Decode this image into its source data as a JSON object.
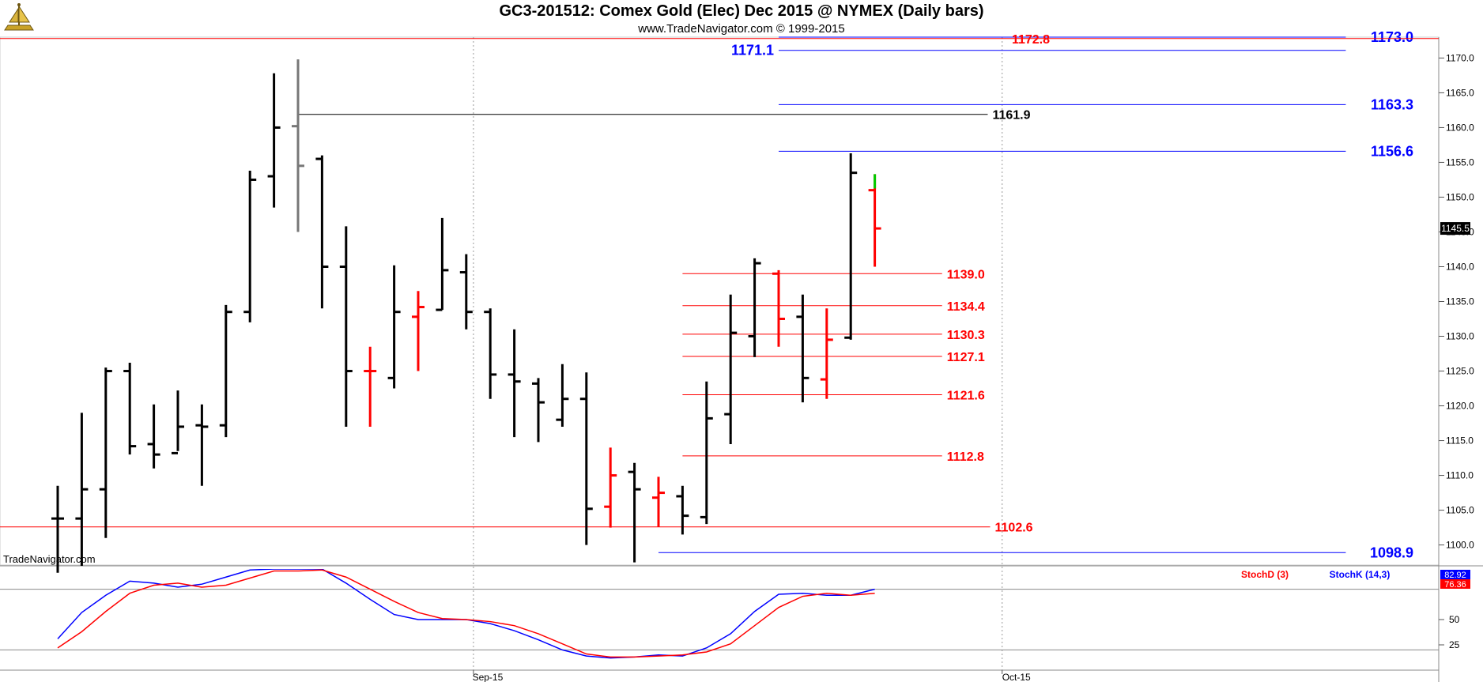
{
  "header": {
    "title": "GC3-201512:  Comex Gold (Elec) Dec 2015 @ NYMEX  (Daily bars)",
    "subtitle": "www.TradeNavigator.com © 1999-2015"
  },
  "watermark": "TradeNavigator.com",
  "colors": {
    "up_bar": "#000000",
    "down_bar": "#ff0000",
    "gray_bar": "#777777",
    "red_level": "#ff0000",
    "blue_level": "#0000ff",
    "black_level": "#000000",
    "stoch_k": "#0000ff",
    "stoch_d": "#ff0000",
    "tick_green": "#00cc00"
  },
  "chart_data": [
    {
      "type": "ohlc",
      "title": "GC3-201512:  Comex Gold (Elec) Dec 2015 @ NYMEX  (Daily bars)",
      "ylim": [
        1097,
        1173
      ],
      "y_ticks": [
        "1100.0",
        "1105.0",
        "1110.0",
        "1115.0",
        "1120.0",
        "1125.0",
        "1130.0",
        "1135.0",
        "1140.0",
        "1145.0",
        "1150.0",
        "1155.0",
        "1160.0",
        "1165.0",
        "1170.0"
      ],
      "y_tick_values": [
        1100,
        1105,
        1110,
        1115,
        1120,
        1125,
        1130,
        1135,
        1140,
        1145,
        1150,
        1155,
        1160,
        1165,
        1170
      ],
      "x_labels": [
        "Sep-15",
        "Oct-15"
      ],
      "x_label_bar_index": [
        17.3,
        39.3
      ],
      "last_price": "1145.5",
      "last_price_value": 1145.5,
      "bars": [
        {
          "h": 1108.5,
          "l": 1096.0,
          "o": 1103.8,
          "c": 1103.8,
          "color": "black"
        },
        {
          "h": 1119.0,
          "l": 1097.0,
          "o": 1103.8,
          "c": 1108.0,
          "color": "black"
        },
        {
          "h": 1125.5,
          "l": 1101.0,
          "o": 1108.0,
          "c": 1125.0,
          "color": "black"
        },
        {
          "h": 1126.2,
          "l": 1113.0,
          "o": 1125.0,
          "c": 1114.2,
          "color": "black"
        },
        {
          "h": 1120.2,
          "l": 1111.0,
          "o": 1114.5,
          "c": 1113.0,
          "color": "black"
        },
        {
          "h": 1122.2,
          "l": 1113.5,
          "o": 1113.2,
          "c": 1117.0,
          "color": "black"
        },
        {
          "h": 1120.2,
          "l": 1108.5,
          "o": 1117.2,
          "c": 1117.0,
          "color": "black"
        },
        {
          "h": 1134.5,
          "l": 1115.5,
          "o": 1117.2,
          "c": 1133.5,
          "color": "black"
        },
        {
          "h": 1153.8,
          "l": 1132.0,
          "o": 1133.5,
          "c": 1152.5,
          "color": "black"
        },
        {
          "h": 1167.8,
          "l": 1148.5,
          "o": 1153.0,
          "c": 1160.0,
          "color": "black"
        },
        {
          "h": 1169.8,
          "l": 1145.0,
          "o": 1160.2,
          "c": 1154.5,
          "color": "gray"
        },
        {
          "h": 1156.0,
          "l": 1134.0,
          "o": 1155.5,
          "c": 1140.0,
          "color": "black"
        },
        {
          "h": 1145.8,
          "l": 1117.0,
          "o": 1140.0,
          "c": 1125.0,
          "color": "black"
        },
        {
          "h": 1128.5,
          "l": 1117.0,
          "o": 1125.0,
          "c": 1125.0,
          "color": "red"
        },
        {
          "h": 1140.2,
          "l": 1122.5,
          "o": 1124.0,
          "c": 1133.5,
          "color": "black"
        },
        {
          "h": 1136.5,
          "l": 1125.0,
          "o": 1132.8,
          "c": 1134.2,
          "color": "red"
        },
        {
          "h": 1147.0,
          "l": 1133.8,
          "o": 1133.8,
          "c": 1139.5,
          "color": "black"
        },
        {
          "h": 1141.8,
          "l": 1131.0,
          "o": 1139.2,
          "c": 1133.5,
          "color": "black"
        },
        {
          "h": 1134.0,
          "l": 1121.0,
          "o": 1133.5,
          "c": 1124.5,
          "color": "black"
        },
        {
          "h": 1131.0,
          "l": 1115.5,
          "o": 1124.5,
          "c": 1123.5,
          "color": "black"
        },
        {
          "h": 1124.0,
          "l": 1114.8,
          "o": 1123.2,
          "c": 1120.5,
          "color": "black"
        },
        {
          "h": 1126.0,
          "l": 1117.0,
          "o": 1118.0,
          "c": 1121.0,
          "color": "black"
        },
        {
          "h": 1124.8,
          "l": 1100.0,
          "o": 1121.0,
          "c": 1105.2,
          "color": "black"
        },
        {
          "h": 1114.0,
          "l": 1102.5,
          "o": 1105.5,
          "c": 1110.0,
          "color": "red"
        },
        {
          "h": 1111.8,
          "l": 1097.5,
          "o": 1110.5,
          "c": 1108.0,
          "color": "black"
        },
        {
          "h": 1109.8,
          "l": 1102.6,
          "o": 1106.8,
          "c": 1107.5,
          "color": "red"
        },
        {
          "h": 1108.5,
          "l": 1101.5,
          "o": 1107.0,
          "c": 1104.2,
          "color": "black"
        },
        {
          "h": 1123.5,
          "l": 1103.0,
          "o": 1104.0,
          "c": 1118.2,
          "color": "black"
        },
        {
          "h": 1136.0,
          "l": 1114.5,
          "o": 1118.8,
          "c": 1130.5,
          "color": "black"
        },
        {
          "h": 1141.2,
          "l": 1127.0,
          "o": 1130.0,
          "c": 1140.5,
          "color": "black"
        },
        {
          "h": 1139.5,
          "l": 1128.5,
          "o": 1139.0,
          "c": 1132.5,
          "color": "red"
        },
        {
          "h": 1136.0,
          "l": 1120.5,
          "o": 1132.8,
          "c": 1124.0,
          "color": "black"
        },
        {
          "h": 1134.0,
          "l": 1121.0,
          "o": 1123.8,
          "c": 1129.5,
          "color": "red"
        },
        {
          "h": 1156.3,
          "l": 1129.5,
          "o": 1129.8,
          "c": 1153.5,
          "color": "black"
        },
        {
          "h": 1153.3,
          "l": 1140.0,
          "o": 1151.0,
          "c": 1145.5,
          "color": "red",
          "last_tick": "green"
        }
      ],
      "levels": [
        {
          "label": "1173.0",
          "value": 1173.0,
          "color": "blue",
          "from_bar": 30,
          "to_bar": 53.6
        },
        {
          "label": "1172.8",
          "value": 1172.8,
          "color": "red",
          "from_bar": 30,
          "to_bar": 39.9,
          "full_width": true
        },
        {
          "label": "1171.1",
          "value": 1171.1,
          "color": "blue",
          "from_bar": 30,
          "to_bar": 53.6,
          "label_left": true
        },
        {
          "label": "1163.3",
          "value": 1163.3,
          "color": "blue",
          "from_bar": 30,
          "to_bar": 53.6
        },
        {
          "label": "1161.9",
          "value": 1161.9,
          "color": "black",
          "from_bar": 10,
          "to_bar": 38.7
        },
        {
          "label": "1156.6",
          "value": 1156.6,
          "color": "blue",
          "from_bar": 30,
          "to_bar": 53.6
        },
        {
          "label": "1139.0",
          "value": 1139.0,
          "color": "red",
          "from_bar": 26,
          "to_bar": 36.8
        },
        {
          "label": "1134.4",
          "value": 1134.4,
          "color": "red",
          "from_bar": 26,
          "to_bar": 36.8
        },
        {
          "label": "1130.3",
          "value": 1130.3,
          "color": "red",
          "from_bar": 26,
          "to_bar": 36.8
        },
        {
          "label": "1127.1",
          "value": 1127.1,
          "color": "red",
          "from_bar": 26,
          "to_bar": 36.8
        },
        {
          "label": "1121.6",
          "value": 1121.6,
          "color": "red",
          "from_bar": 26,
          "to_bar": 36.8
        },
        {
          "label": "1112.8",
          "value": 1112.8,
          "color": "red",
          "from_bar": 26,
          "to_bar": 36.8
        },
        {
          "label": "1102.6",
          "value": 1102.6,
          "color": "red",
          "from_bar": -1.4,
          "to_bar": 38.8,
          "full_width": true
        },
        {
          "label": "1098.9",
          "value": 1098.9,
          "color": "blue",
          "from_bar": 25,
          "to_bar": 53.6
        }
      ]
    },
    {
      "type": "line",
      "title": "",
      "ylim": [
        0,
        100
      ],
      "y_ticks": [
        "25",
        "50"
      ],
      "y_tick_values": [
        25,
        50
      ],
      "ref_lines": [
        80,
        20
      ],
      "value_badges": [
        "82.92",
        "76.36"
      ],
      "series": [
        {
          "name": "StochK (14,3)",
          "color": "blue",
          "values": [
            31,
            57,
            74,
            88,
            86,
            82,
            85,
            92,
            99,
            100,
            100,
            100,
            86,
            70,
            55,
            50,
            50,
            50,
            46,
            39,
            30,
            20,
            14,
            12,
            13,
            15,
            14,
            22,
            36,
            58,
            75,
            76,
            74,
            74,
            80
          ]
        },
        {
          "name": "StochD (3)",
          "color": "red",
          "values": [
            22,
            38,
            58,
            76,
            84,
            86,
            82,
            84,
            91,
            98,
            98,
            99,
            92,
            80,
            68,
            57,
            51,
            50,
            48,
            44,
            36,
            26,
            16,
            13,
            13,
            14,
            15,
            18,
            26,
            44,
            62,
            73,
            76,
            74,
            76
          ]
        }
      ]
    }
  ]
}
